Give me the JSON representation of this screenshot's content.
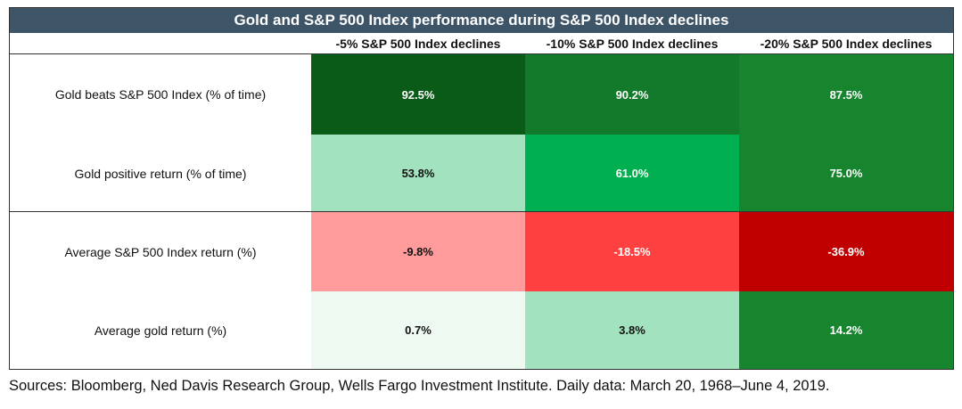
{
  "chart_data": {
    "type": "table",
    "title": "Gold and S&P 500 Index performance during S&P 500 Index declines",
    "columns": [
      "-5% S&P 500 Index declines",
      "-10% S&P 500 Index declines",
      "-20% S&P 500 Index declines"
    ],
    "rows": [
      {
        "label": "Gold beats S&P 500 Index (% of time)",
        "values": [
          "92.5%",
          "90.2%",
          "87.5%"
        ],
        "colors": [
          "#0b5b18",
          "#127a2a",
          "#17852e"
        ],
        "text_colors": [
          "#ffffff",
          "#ffffff",
          "#ffffff"
        ]
      },
      {
        "label": "Gold positive return (% of time)",
        "values": [
          "53.8%",
          "61.0%",
          "75.0%"
        ],
        "colors": [
          "#a3e2be",
          "#00b050",
          "#17852e"
        ],
        "text_colors": [
          "#111111",
          "#ffffff",
          "#ffffff"
        ]
      },
      {
        "label": "Average S&P 500 Index return (%)",
        "values": [
          "-9.8%",
          "-18.5%",
          "-36.9%"
        ],
        "colors": [
          "#ff9b9b",
          "#ff4040",
          "#c00000"
        ],
        "text_colors": [
          "#111111",
          "#ffffff",
          "#ffffff"
        ]
      },
      {
        "label": "Average gold return (%)",
        "values": [
          "0.7%",
          "3.8%",
          "14.2%"
        ],
        "colors": [
          "#eef9f2",
          "#a3e2be",
          "#17852e"
        ],
        "text_colors": [
          "#111111",
          "#111111",
          "#ffffff"
        ]
      }
    ],
    "title_bar_color": "#3e5467"
  },
  "source": "Sources: Bloomberg, Ned Davis Research Group, Wells Fargo Investment Institute. Daily data: March 20, 1968–June 4, 2019."
}
